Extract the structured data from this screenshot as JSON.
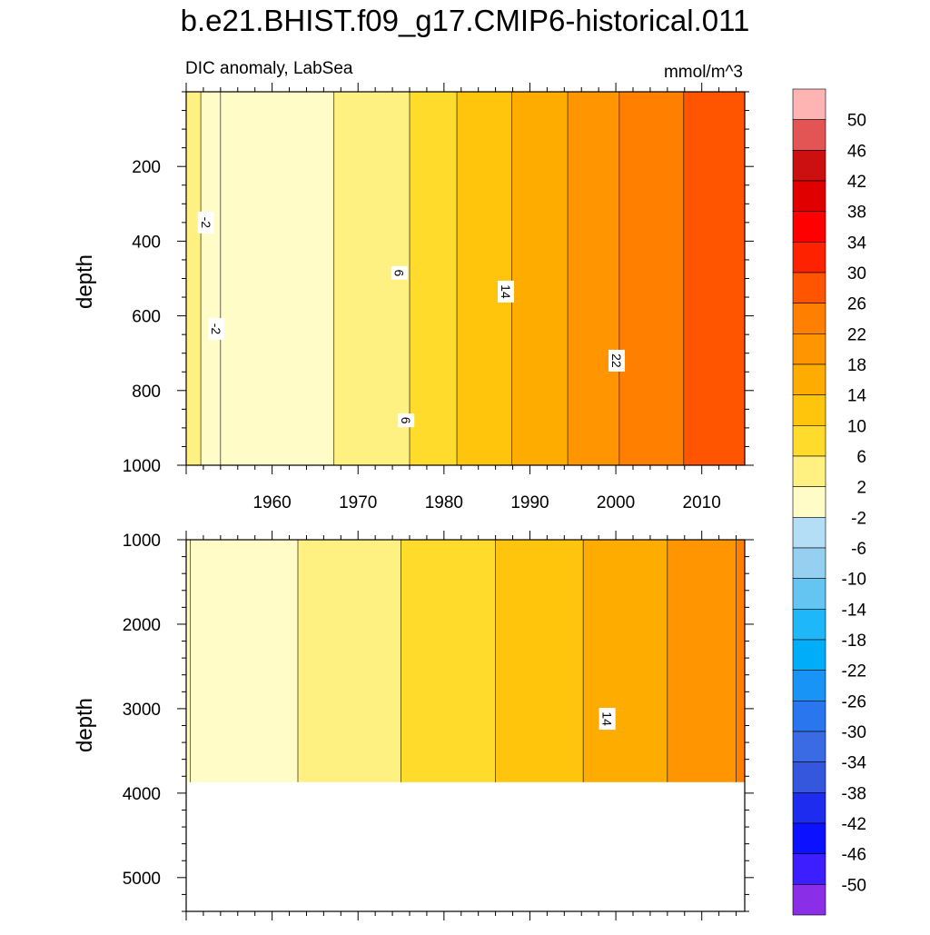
{
  "chart_data": {
    "type": "heatmap",
    "title": "b.e21.BHIST.f09_g17.CMIP6-historical.011",
    "subtitle_left": "DIC anomaly, LabSea",
    "units": "mmol/m^3",
    "colorbar": {
      "labels": [
        "50",
        "46",
        "42",
        "38",
        "34",
        "30",
        "26",
        "22",
        "18",
        "14",
        "10",
        "6",
        "2",
        "-2",
        "-6",
        "-10",
        "-14",
        "-18",
        "-22",
        "-26",
        "-30",
        "-34",
        "-38",
        "-42",
        "-46",
        "-50"
      ],
      "colors": [
        "#ffb4b4",
        "#e35454",
        "#cc1010",
        "#e00000",
        "#ff0000",
        "#ff2200",
        "#ff5500",
        "#ff7f00",
        "#ff9500",
        "#ffac00",
        "#ffc40c",
        "#ffdb2c",
        "#fff082",
        "#fffcc8",
        "#b3def5",
        "#96d0f0",
        "#64c4f2",
        "#1eb8f8",
        "#00adf8",
        "#1893f6",
        "#2a76ee",
        "#3a6ae4",
        "#3457de",
        "#1e2cf0",
        "#0c12ff",
        "#3c1eff",
        "#8a2ee8"
      ]
    },
    "panels": [
      {
        "xlim": [
          1950,
          2015
        ],
        "ylim": [
          0,
          1000
        ],
        "y_inverted": true,
        "ylabel": "depth",
        "yticks": [
          200,
          400,
          600,
          800,
          1000
        ],
        "xticks": [
          1960,
          1970,
          1980,
          1990,
          2000,
          2010
        ],
        "show_xtick_labels": true,
        "x_breaks": [
          1951.7,
          1954.0,
          1967.2,
          1976.0,
          1981.5,
          1987.9,
          1994.4,
          2000.4,
          2007.9
        ],
        "band_values": [
          2.0,
          -2.0,
          0.0,
          4.0,
          8.0,
          12.0,
          16.0,
          20.0,
          24.0,
          28.0
        ],
        "contour_labels": [
          {
            "text": "-2",
            "x": 1952.3,
            "depth": 350
          },
          {
            "text": "-2",
            "x": 1953.5,
            "depth": 635
          },
          {
            "text": "6",
            "x": 1974.8,
            "depth": 485
          },
          {
            "text": "14",
            "x": 1987.2,
            "depth": 535
          },
          {
            "text": "22",
            "x": 2000.1,
            "depth": 720
          },
          {
            "text": "6",
            "x": 1975.6,
            "depth": 880
          }
        ]
      },
      {
        "xlim": [
          1950,
          2015
        ],
        "ylim": [
          1000,
          5400
        ],
        "y_inverted": true,
        "ylabel": "depth",
        "yticks": [
          1000,
          2000,
          3000,
          4000,
          5000
        ],
        "xticks": [
          1960,
          1970,
          1980,
          1990,
          2000,
          2010
        ],
        "show_xtick_labels": false,
        "data_bottom_depth": 3870,
        "x_breaks": [
          1950.5,
          1963.0,
          1975.0,
          1986.0,
          1996.2,
          2006.0,
          2014.0
        ],
        "band_values": [
          -2.0,
          0.0,
          4.0,
          8.0,
          12.0,
          16.0,
          20.0,
          24.0
        ],
        "contour_labels": [
          {
            "text": "14",
            "x": 1999.0,
            "depth": 3120
          }
        ]
      }
    ]
  }
}
